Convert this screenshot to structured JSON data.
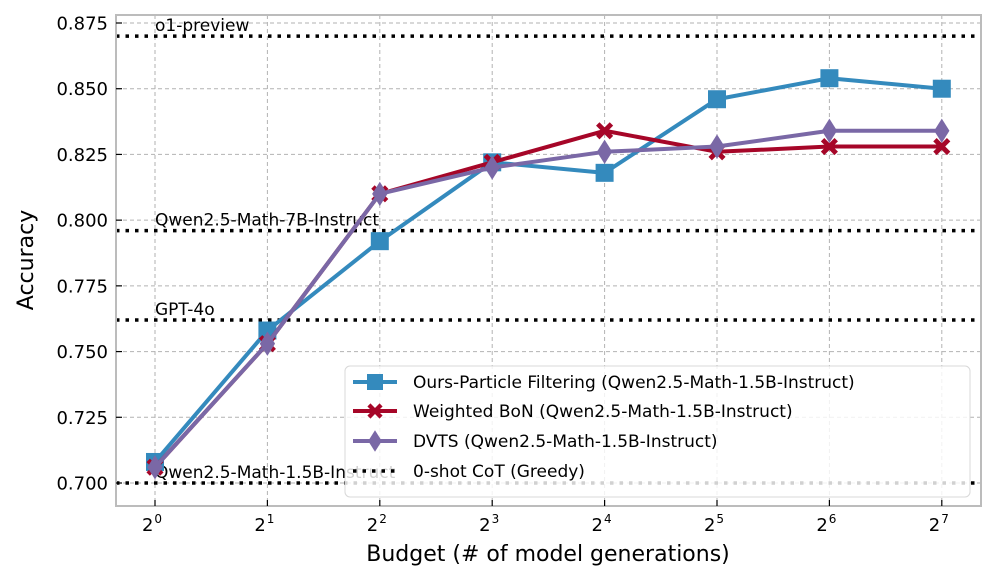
{
  "chart_data": {
    "type": "line",
    "title": "",
    "xlabel": "Budget (# of model generations)",
    "ylabel": "Accuracy",
    "x_scale": "log2",
    "x": [
      1,
      2,
      4,
      8,
      16,
      32,
      64,
      128
    ],
    "x_tick_labels": [
      {
        "base": "2",
        "exp": "0"
      },
      {
        "base": "2",
        "exp": "1"
      },
      {
        "base": "2",
        "exp": "2"
      },
      {
        "base": "2",
        "exp": "3"
      },
      {
        "base": "2",
        "exp": "4"
      },
      {
        "base": "2",
        "exp": "5"
      },
      {
        "base": "2",
        "exp": "6"
      },
      {
        "base": "2",
        "exp": "7"
      }
    ],
    "xlim_exp": [
      -0.35,
      7.35
    ],
    "ylim": [
      0.6915,
      0.878
    ],
    "y_ticks": [
      0.7,
      0.725,
      0.75,
      0.775,
      0.8,
      0.825,
      0.85,
      0.875
    ],
    "y_tick_labels": [
      "0.700",
      "0.725",
      "0.750",
      "0.775",
      "0.800",
      "0.825",
      "0.850",
      "0.875"
    ],
    "grid": true,
    "series": [
      {
        "name": "Ours-Particle Filtering (Qwen2.5-Math-1.5B-Instruct)",
        "color": "#348ABD",
        "marker": "square",
        "values": [
          0.708,
          0.758,
          0.792,
          0.822,
          0.818,
          0.846,
          0.854,
          0.85
        ]
      },
      {
        "name": "Weighted BoN (Qwen2.5-Math-1.5B-Instruct)",
        "color": "#A60628",
        "marker": "x",
        "values": [
          0.706,
          0.753,
          0.81,
          0.822,
          0.834,
          0.826,
          0.828,
          0.828
        ]
      },
      {
        "name": "DVTS (Qwen2.5-Math-1.5B-Instruct)",
        "color": "#7A68A6",
        "marker": "diamond",
        "values": [
          0.706,
          0.753,
          0.81,
          0.82,
          0.826,
          0.828,
          0.834,
          0.834
        ]
      }
    ],
    "reference_lines": [
      {
        "label": "o1-preview",
        "value": 0.87,
        "style": "dotted",
        "color": "#000000"
      },
      {
        "label": "Qwen2.5-Math-7B-Instruct",
        "value": 0.796,
        "style": "dotted",
        "color": "#000000"
      },
      {
        "label": "GPT-4o",
        "value": 0.762,
        "style": "dotted",
        "color": "#000000"
      },
      {
        "label": "Qwen2.5-Math-1.5B-Instruct",
        "value": 0.7,
        "style": "dotted",
        "color": "#000000"
      }
    ],
    "legend": {
      "placement": "lower-right",
      "entries": [
        {
          "label": "Ours-Particle Filtering (Qwen2.5-Math-1.5B-Instruct)",
          "color": "#348ABD",
          "marker": "square",
          "style": "solid"
        },
        {
          "label": "Weighted BoN (Qwen2.5-Math-1.5B-Instruct)",
          "color": "#A60628",
          "marker": "x",
          "style": "solid"
        },
        {
          "label": "DVTS (Qwen2.5-Math-1.5B-Instruct)",
          "color": "#7A68A6",
          "marker": "diamond",
          "style": "solid"
        },
        {
          "label": "0-shot CoT (Greedy)",
          "color": "#000000",
          "marker": "none",
          "style": "dotted"
        }
      ]
    },
    "frame_color": "#BCBCBC",
    "grid_color": "#B2B2B2"
  }
}
